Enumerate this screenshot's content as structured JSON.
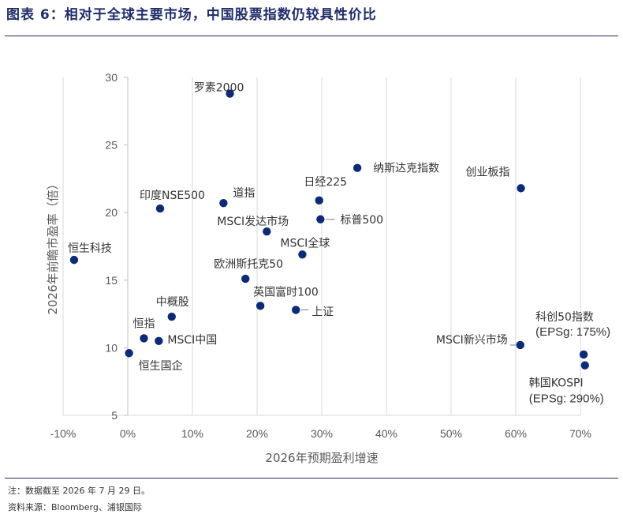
{
  "figure": {
    "title": "图表 6：相对于全球主要市场，中国股票指数仍较具性价比",
    "note": "注：数据截至 2026 年 7 月 29 日。",
    "source": "资料来源：Bloomberg、浦银国际"
  },
  "colors": {
    "marker": "#0b2a7a",
    "title": "#1f2d6b",
    "grid": "#d9d9d9",
    "text": "#595959"
  },
  "chart_data": {
    "type": "scatter",
    "title": "",
    "xlabel": "2026年预期盈利增速",
    "ylabel": "2026年前瞻市盈率（倍）",
    "xlim": [
      -10,
      70
    ],
    "ylim": [
      5,
      30
    ],
    "x_ticks": [
      -10,
      0,
      10,
      20,
      30,
      40,
      50,
      60,
      70
    ],
    "x_tick_labels": [
      "-10%",
      "0%",
      "10%",
      "20%",
      "30%",
      "40%",
      "50%",
      "60%",
      "70%"
    ],
    "y_ticks": [
      5,
      10,
      15,
      20,
      25,
      30
    ],
    "y_tick_labels": [
      "5",
      "10",
      "15",
      "20",
      "25",
      "30"
    ],
    "grid": "vertical",
    "points": [
      {
        "label": "罗素2000",
        "x": 15.8,
        "y": 28.8
      },
      {
        "label": "纳斯达克指数",
        "x": 35.5,
        "y": 23.3
      },
      {
        "label": "创业板指",
        "x": 60.8,
        "y": 21.8
      },
      {
        "label": "日经225",
        "x": 29.6,
        "y": 20.9
      },
      {
        "label": "道指",
        "x": 14.8,
        "y": 20.7
      },
      {
        "label": "印度NSE500",
        "x": 5.0,
        "y": 20.3
      },
      {
        "label": "标普500",
        "x": 29.8,
        "y": 19.5
      },
      {
        "label": "MSCI发达市场",
        "x": 21.5,
        "y": 18.6
      },
      {
        "label": "MSCI全球",
        "x": 27.0,
        "y": 16.9
      },
      {
        "label": "恒生科技",
        "x": -8.3,
        "y": 16.5
      },
      {
        "label": "欧洲斯托克50",
        "x": 18.2,
        "y": 15.1
      },
      {
        "label": "英国富时100",
        "x": 20.5,
        "y": 13.1
      },
      {
        "label": "上证",
        "x": 26.0,
        "y": 12.8
      },
      {
        "label": "中概股",
        "x": 6.8,
        "y": 12.3
      },
      {
        "label": "恒指",
        "x": 2.5,
        "y": 10.7
      },
      {
        "label": "MSCI中国",
        "x": 4.8,
        "y": 10.5
      },
      {
        "label": "MSCI新兴市场",
        "x": 60.7,
        "y": 10.2
      },
      {
        "label": "恒生国企",
        "x": 0.2,
        "y": 9.6
      },
      {
        "label": "科创50指数",
        "sublabel": "(EPSg: 175%)",
        "x": 70.5,
        "y": 9.5
      },
      {
        "label": "韩国KOSPI",
        "sublabel": "(EPSg: 290%)",
        "x": 70.7,
        "y": 8.7
      }
    ]
  }
}
